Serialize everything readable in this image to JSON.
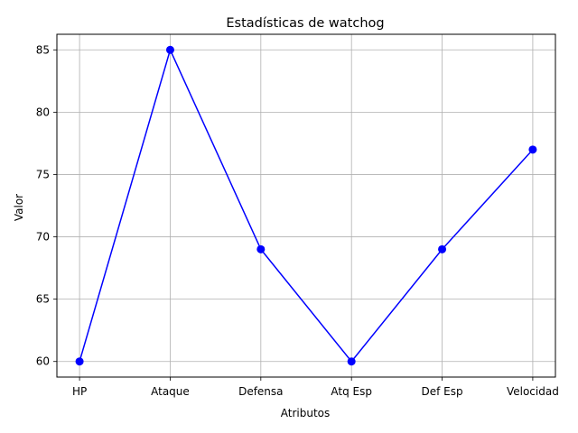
{
  "chart_data": {
    "type": "line",
    "title": "Estadísticas de watchog",
    "xlabel": "Atributos",
    "ylabel": "Valor",
    "categories": [
      "HP",
      "Ataque",
      "Defensa",
      "Atq Esp",
      "Def Esp",
      "Velocidad"
    ],
    "series": [
      {
        "values": [
          60,
          85,
          69,
          60,
          69,
          77
        ],
        "color": "#0000ff",
        "marker": "circle"
      }
    ],
    "ylim": [
      58.75,
      86.25
    ],
    "yticks": [
      60,
      65,
      70,
      75,
      80,
      85
    ],
    "grid": true
  }
}
